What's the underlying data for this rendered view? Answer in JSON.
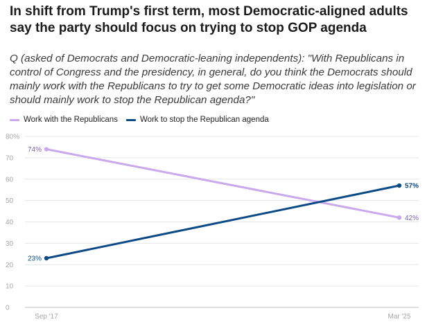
{
  "title": "In shift from Trump's first term, most Democratic-aligned adults say the party should focus on trying to stop GOP agenda",
  "subtitle": "Q (asked of Democrats and Democratic-leaning independents): \"With Republicans in control of Congress and the presidency, in general, do you think the Democrats should mainly work with the Republicans to try to get some Democratic ideas into legislation or should mainly work to stop the Republican agenda?\"",
  "chart_data": {
    "type": "line",
    "categories": [
      "Sep '17",
      "Mar '25"
    ],
    "series": [
      {
        "name": "Work with the Republicans",
        "values": [
          74,
          42
        ],
        "labels": [
          "74%",
          "42%"
        ],
        "color": "#c9a8ec"
      },
      {
        "name": "Work to stop the Republican agenda",
        "values": [
          23,
          57
        ],
        "labels": [
          "23%",
          "57%"
        ],
        "color": "#0b4a85"
      }
    ],
    "yticks": [
      {
        "value": 0,
        "label": "0"
      },
      {
        "value": 10,
        "label": "10"
      },
      {
        "value": 20,
        "label": "20"
      },
      {
        "value": 30,
        "label": "30"
      },
      {
        "value": 40,
        "label": "40"
      },
      {
        "value": 50,
        "label": "50"
      },
      {
        "value": 60,
        "label": "60"
      },
      {
        "value": 70,
        "label": "70"
      },
      {
        "value": 80,
        "label": "80%"
      }
    ],
    "ylim": [
      0,
      80
    ],
    "grid": true,
    "legend_position": "top-left"
  }
}
